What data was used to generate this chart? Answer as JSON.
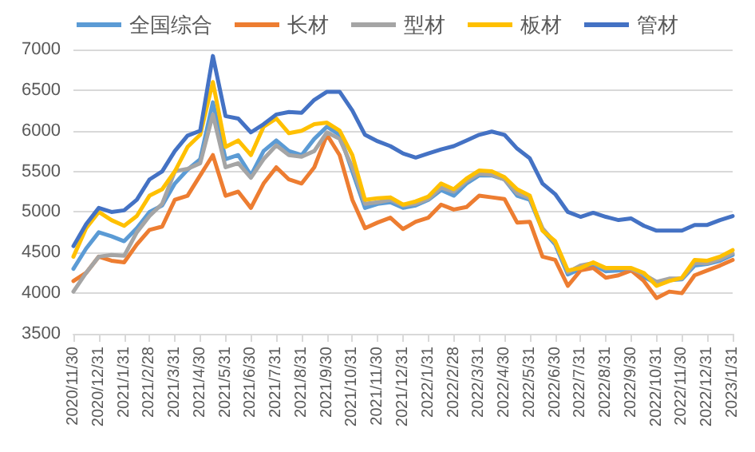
{
  "chart_data": {
    "type": "line",
    "categories": [
      "2020/11/30",
      null,
      "2020/12/31",
      null,
      "2021/1/31",
      null,
      "2021/2/28",
      null,
      "2021/3/31",
      null,
      "2021/4/30",
      null,
      "2021/5/31",
      null,
      "2021/6/30",
      null,
      "2021/7/31",
      null,
      "2021/8/31",
      null,
      "2021/9/30",
      null,
      "2021/10/31",
      null,
      "2021/11/30",
      null,
      "2021/12/31",
      null,
      "2022/1/31",
      null,
      "2022/2/28",
      null,
      "2022/3/31",
      null,
      "2022/4/30",
      null,
      "2022/5/31",
      null,
      "2022/6/30",
      null,
      "2022/7/31",
      null,
      "2022/8/31",
      null,
      "2022/9/30",
      null,
      "2022/10/31",
      null,
      "2022/11/30",
      null,
      "2022/12/31",
      null,
      "2023/1/31"
    ],
    "series": [
      {
        "name": "全国综合",
        "color": "#5b9bd5",
        "values": [
          4300,
          4550,
          4750,
          4700,
          4640,
          4800,
          5000,
          5080,
          5350,
          5520,
          5650,
          6350,
          5650,
          5700,
          5450,
          5750,
          5880,
          5750,
          5700,
          5900,
          6050,
          5950,
          5500,
          5050,
          5100,
          5120,
          5050,
          5080,
          5150,
          5270,
          5200,
          5350,
          5450,
          5450,
          5400,
          5200,
          5150,
          4780,
          4600,
          4230,
          4300,
          4350,
          4270,
          4280,
          4280,
          4200,
          4120,
          4160,
          4170,
          4340,
          4360,
          4400,
          4470
        ]
      },
      {
        "name": "长材",
        "color": "#ed7d31",
        "values": [
          4150,
          4250,
          4450,
          4400,
          4380,
          4600,
          4780,
          4820,
          5150,
          5200,
          5450,
          5700,
          5200,
          5250,
          5050,
          5350,
          5550,
          5400,
          5350,
          5550,
          5950,
          5700,
          5150,
          4800,
          4870,
          4930,
          4790,
          4880,
          4930,
          5090,
          5030,
          5060,
          5200,
          5180,
          5160,
          4870,
          4880,
          4450,
          4410,
          4090,
          4280,
          4310,
          4190,
          4220,
          4280,
          4150,
          3940,
          4020,
          4000,
          4220,
          4280,
          4340,
          4410
        ]
      },
      {
        "name": "型材",
        "color": "#a5a5a5",
        "values": [
          4020,
          4250,
          4450,
          4470,
          4460,
          4750,
          4950,
          5100,
          5500,
          5530,
          5600,
          6200,
          5550,
          5600,
          5420,
          5650,
          5820,
          5700,
          5680,
          5750,
          5980,
          5900,
          5550,
          5100,
          5120,
          5150,
          5080,
          5100,
          5160,
          5300,
          5250,
          5380,
          5470,
          5460,
          5400,
          5230,
          5170,
          4800,
          4620,
          4260,
          4340,
          4370,
          4300,
          4310,
          4300,
          4230,
          4140,
          4180,
          4180,
          4370,
          4370,
          4420,
          4490
        ]
      },
      {
        "name": "板材",
        "color": "#ffc000",
        "values": [
          4450,
          4800,
          5000,
          4900,
          4830,
          4950,
          5200,
          5280,
          5500,
          5800,
          5950,
          6600,
          5800,
          5880,
          5700,
          6050,
          6150,
          5970,
          6000,
          6080,
          6100,
          6000,
          5700,
          5150,
          5170,
          5180,
          5090,
          5130,
          5190,
          5350,
          5280,
          5410,
          5510,
          5500,
          5430,
          5280,
          5200,
          4770,
          4640,
          4280,
          4310,
          4380,
          4310,
          4310,
          4310,
          4250,
          4090,
          4150,
          4190,
          4410,
          4400,
          4450,
          4530
        ]
      },
      {
        "name": "管材",
        "color": "#4472c4",
        "values": [
          4580,
          4850,
          5050,
          5000,
          5020,
          5150,
          5400,
          5500,
          5750,
          5940,
          6000,
          6920,
          6180,
          6150,
          5980,
          6080,
          6200,
          6230,
          6220,
          6380,
          6480,
          6480,
          6250,
          5950,
          5870,
          5810,
          5720,
          5670,
          5720,
          5770,
          5810,
          5880,
          5950,
          5990,
          5950,
          5780,
          5660,
          5350,
          5220,
          5000,
          4940,
          4990,
          4940,
          4900,
          4920,
          4830,
          4770,
          4770,
          4770,
          4840,
          4840,
          4900,
          4950
        ]
      }
    ],
    "ylim": [
      3500,
      7000
    ],
    "yticks": [
      3500,
      4000,
      4500,
      5000,
      5500,
      6000,
      6500,
      7000
    ],
    "grid": "y",
    "legend": "top",
    "marker": "none",
    "line_style": "solid"
  }
}
